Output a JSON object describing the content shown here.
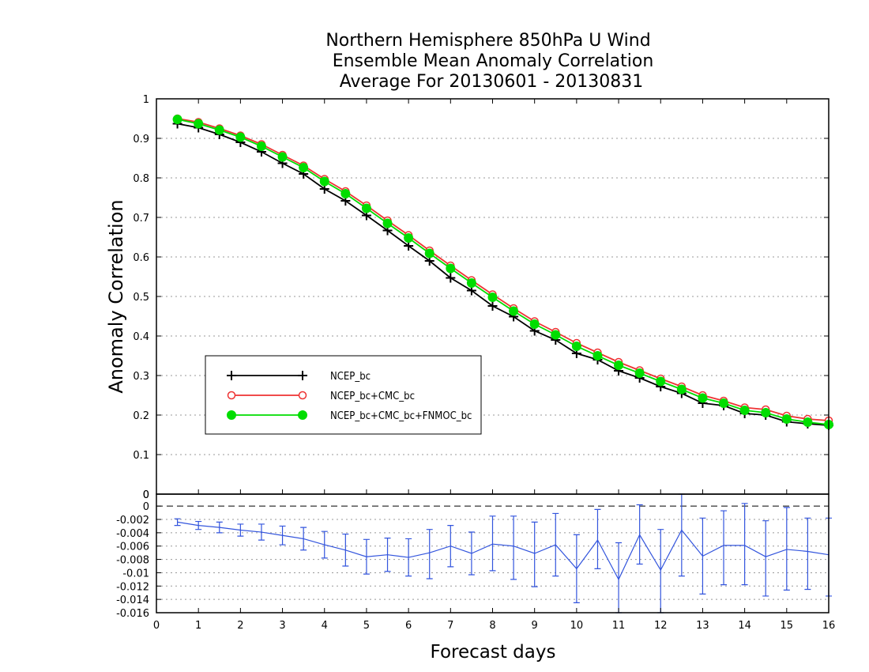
{
  "chart_data": [
    {
      "type": "line",
      "title": [
        "Northern Hemisphere 850hPa U Wind",
        "Ensemble Mean Anomaly Correlation",
        "Average For 20130601 - 20130831"
      ],
      "xlabel": "Forecast days",
      "ylabel": "Anomaly Correlation",
      "xlim": [
        0,
        16
      ],
      "ylim": [
        0,
        1
      ],
      "xticks": [
        "0",
        "1",
        "2",
        "3",
        "4",
        "5",
        "6",
        "7",
        "8",
        "9",
        "10",
        "11",
        "12",
        "13",
        "14",
        "15",
        "16"
      ],
      "yticks": [
        "0",
        "0.1",
        "0.2",
        "0.3",
        "0.4",
        "0.5",
        "0.6",
        "0.7",
        "0.8",
        "0.9",
        "1"
      ],
      "grid": true,
      "legend_position": "lower-left",
      "x": [
        0.5,
        1,
        1.5,
        2,
        2.5,
        3,
        3.5,
        4,
        4.5,
        5,
        5.5,
        6,
        6.5,
        7,
        7.5,
        8,
        8.5,
        9,
        9.5,
        10,
        10.5,
        11,
        11.5,
        12,
        12.5,
        13,
        13.5,
        14,
        14.5,
        15,
        15.5,
        16
      ],
      "series": [
        {
          "name": "NCEP_bc",
          "color": "#000000",
          "marker": "plus",
          "values": [
            0.937,
            0.927,
            0.91,
            0.89,
            0.866,
            0.837,
            0.81,
            0.772,
            0.742,
            0.705,
            0.667,
            0.628,
            0.59,
            0.547,
            0.515,
            0.476,
            0.449,
            0.413,
            0.39,
            0.356,
            0.34,
            0.312,
            0.294,
            0.272,
            0.255,
            0.23,
            0.224,
            0.204,
            0.2,
            0.183,
            0.178,
            0.174
          ]
        },
        {
          "name": "NCEP_bc+CMC_bc",
          "color": "#ee3333",
          "marker": "open-circle",
          "values": [
            0.95,
            0.941,
            0.925,
            0.907,
            0.885,
            0.858,
            0.831,
            0.797,
            0.766,
            0.73,
            0.692,
            0.655,
            0.616,
            0.578,
            0.541,
            0.505,
            0.47,
            0.437,
            0.41,
            0.382,
            0.358,
            0.334,
            0.313,
            0.292,
            0.272,
            0.25,
            0.236,
            0.219,
            0.214,
            0.198,
            0.19,
            0.186
          ]
        },
        {
          "name": "NCEP_bc+CMC_bc+FNMOC_bc",
          "color": "#00dd00",
          "marker": "filled-circle",
          "values": [
            0.948,
            0.937,
            0.921,
            0.903,
            0.88,
            0.853,
            0.826,
            0.791,
            0.76,
            0.723,
            0.685,
            0.648,
            0.609,
            0.571,
            0.534,
            0.498,
            0.463,
            0.43,
            0.403,
            0.374,
            0.35,
            0.326,
            0.306,
            0.285,
            0.265,
            0.243,
            0.23,
            0.212,
            0.206,
            0.19,
            0.182,
            0.176
          ]
        }
      ]
    },
    {
      "type": "line",
      "xlim": [
        0,
        16
      ],
      "ylim": [
        -0.016,
        0.0018
      ],
      "yticks": [
        "0",
        "0",
        "-0.002",
        "-0.004",
        "-0.006",
        "-0.008",
        "-0.01",
        "-0.012",
        "-0.014",
        "-0.016"
      ],
      "x": [
        0.5,
        1,
        1.5,
        2,
        2.5,
        3,
        3.5,
        4,
        4.5,
        5,
        5.5,
        6,
        6.5,
        7,
        7.5,
        8,
        8.5,
        9,
        9.5,
        10,
        10.5,
        11,
        11.5,
        12,
        12.5,
        13,
        13.5,
        14,
        14.5,
        15,
        15.5,
        16
      ],
      "series": [
        {
          "name": "",
          "color": "#3355dd",
          "marker": "error-bar",
          "values": [
            -0.0024,
            -0.0029,
            -0.0032,
            -0.0036,
            -0.0039,
            -0.0044,
            -0.0049,
            -0.0058,
            -0.0066,
            -0.0076,
            -0.0073,
            -0.0077,
            -0.007,
            -0.006,
            -0.0071,
            -0.0057,
            -0.006,
            -0.0071,
            -0.0058,
            -0.0094,
            -0.0051,
            -0.011,
            -0.0043,
            -0.0096,
            -0.0036,
            -0.0075,
            -0.0059,
            -0.0059,
            -0.0076,
            -0.0065,
            -0.0068,
            -0.0073
          ],
          "error_low": [
            -0.0029,
            -0.0035,
            -0.004,
            -0.0045,
            -0.0051,
            -0.0058,
            -0.0066,
            -0.0078,
            -0.009,
            -0.0102,
            -0.0098,
            -0.0105,
            -0.0109,
            -0.0091,
            -0.0103,
            -0.0097,
            -0.011,
            -0.0121,
            -0.0105,
            -0.0145,
            -0.0094,
            -0.0168,
            -0.0087,
            -0.016,
            -0.0105,
            -0.0132,
            -0.0118,
            -0.0118,
            -0.0135,
            -0.0126,
            -0.0125,
            -0.0135
          ],
          "error_high": [
            -0.0019,
            -0.0023,
            -0.0024,
            -0.0027,
            -0.0027,
            -0.003,
            -0.0032,
            -0.0038,
            -0.0042,
            -0.005,
            -0.0048,
            -0.0049,
            -0.0035,
            -0.0029,
            -0.0039,
            -0.0015,
            -0.0015,
            -0.0024,
            -0.0011,
            -0.0043,
            -0.0005,
            -0.0055,
            0.0002,
            -0.0035,
            0.0018,
            -0.0018,
            -0.0007,
            0.0004,
            -0.0022,
            -0.0002,
            -0.0018,
            -0.0018
          ]
        }
      ]
    }
  ]
}
